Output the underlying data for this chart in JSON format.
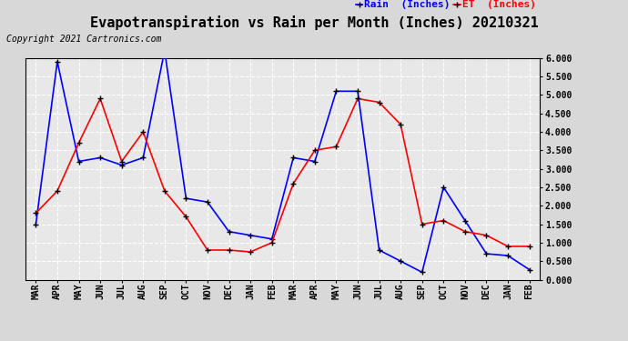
{
  "title": "Evapotranspiration vs Rain per Month (Inches) 20210321",
  "copyright": "Copyright 2021 Cartronics.com",
  "ylim": [
    0.0,
    6.0
  ],
  "yticks": [
    0.0,
    0.5,
    1.0,
    1.5,
    2.0,
    2.5,
    3.0,
    3.5,
    4.0,
    4.5,
    5.0,
    5.5,
    6.0
  ],
  "months": [
    "MAR",
    "APR",
    "MAY",
    "JUN",
    "JUL",
    "AUG",
    "SEP",
    "OCT",
    "NOV",
    "DEC",
    "JAN",
    "FEB",
    "MAR",
    "APR",
    "MAY",
    "JUN",
    "JUL",
    "AUG",
    "SEP",
    "OCT",
    "NOV",
    "DEC",
    "JAN",
    "FEB"
  ],
  "rain": [
    1.5,
    5.9,
    3.2,
    3.3,
    3.1,
    3.3,
    6.2,
    2.2,
    2.1,
    1.3,
    1.2,
    1.1,
    3.3,
    3.2,
    5.1,
    5.1,
    0.8,
    0.5,
    0.2,
    2.5,
    1.6,
    0.7,
    0.65,
    0.27
  ],
  "et": [
    1.8,
    2.4,
    3.7,
    4.9,
    3.2,
    4.0,
    2.4,
    1.7,
    0.8,
    0.8,
    0.75,
    1.0,
    2.6,
    3.5,
    3.6,
    4.9,
    4.8,
    4.2,
    1.5,
    1.6,
    1.3,
    1.2,
    0.9,
    0.9
  ],
  "rain_color": "#0000ff",
  "et_color": "#ff0000",
  "bg_color": "#d8d8d8",
  "plot_bg_color": "#e8e8e8",
  "grid_color": "#ffffff",
  "title_fontsize": 11,
  "copyright_fontsize": 7,
  "tick_fontsize": 7,
  "legend_rain": "Rain  (Inches)",
  "legend_et": "ET  (Inches)"
}
